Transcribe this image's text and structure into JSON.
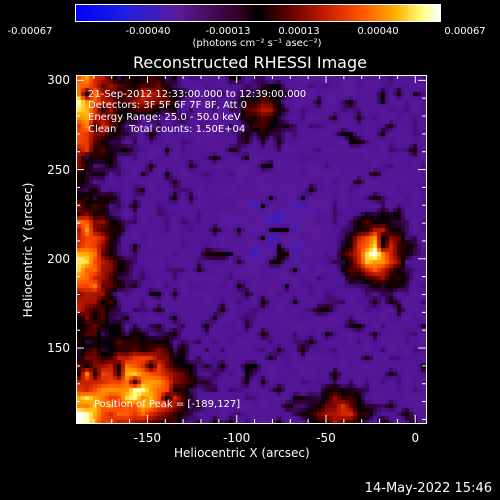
{
  "colorbar": {
    "ticks": [
      "-0.00067",
      "-0.00040",
      "-0.00013",
      "0.00013",
      "0.00040",
      "0.00067"
    ],
    "units_text": "(photons cm⁻² s⁻¹ asec⁻²)"
  },
  "annotations": {
    "line1": "21-Sep-2012 12:33:00.000 to 12:39:00.000",
    "line2": "Detectors: 3F 5F 6F 7F 8F, Att 0",
    "line3": "Energy Range: 25.0 - 50.0 keV",
    "line4": "Clean    Total counts: 1.50E+04",
    "peak": "Position of Peak = [-189,127]"
  },
  "timestamp": "14-May-2022 15:46",
  "chart_data": {
    "type": "heatmap",
    "title": "Reconstructed RHESSI Image",
    "xlabel": "Heliocentric X (arcsec)",
    "ylabel": "Heliocentric Y (arcsec)",
    "xlim": [
      -190,
      6
    ],
    "ylim": [
      108,
      303
    ],
    "x_ticks": [
      "-150",
      "-100",
      "-50",
      "0"
    ],
    "x_tick_values": [
      -150,
      -100,
      -50,
      0
    ],
    "y_ticks": [
      "150",
      "200",
      "250",
      "300"
    ],
    "y_tick_values": [
      150,
      200,
      250,
      300
    ],
    "colorbar_range": [
      -0.00067,
      0.00067
    ],
    "peak": [
      -189,
      127
    ]
  }
}
